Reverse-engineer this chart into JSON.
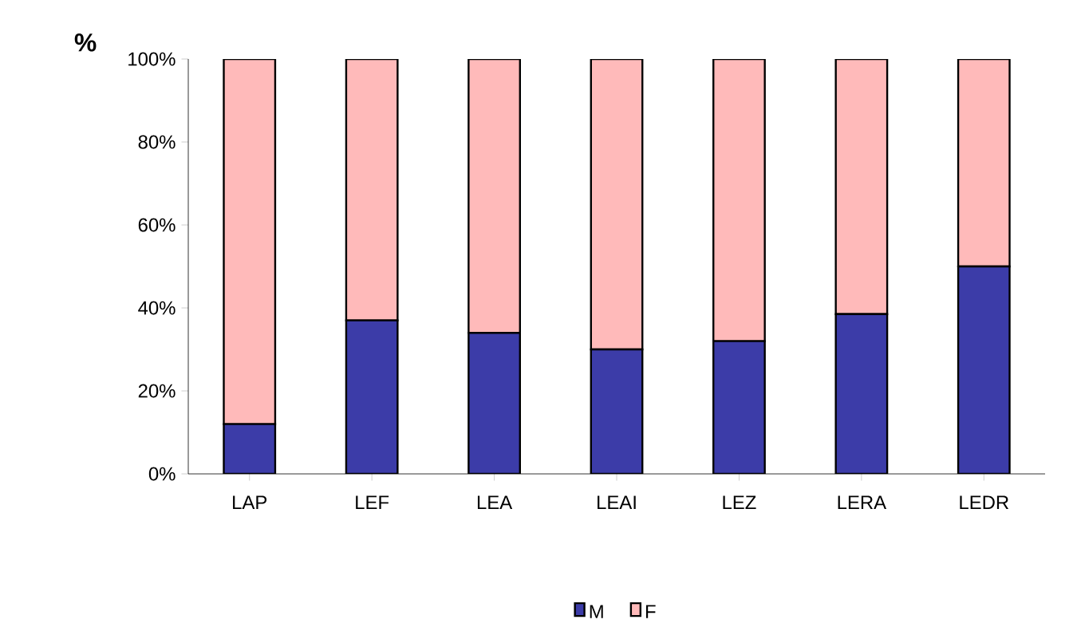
{
  "chart_data": {
    "type": "bar",
    "stacked": true,
    "ylabel": "%",
    "categories": [
      "LAP",
      "LEF",
      "LEA",
      "LEAI",
      "LEZ",
      "LERA",
      "LEDR"
    ],
    "series": [
      {
        "name": "M",
        "color": "#3c3ca8",
        "values": [
          12,
          37,
          34,
          30,
          32,
          38.5,
          50
        ]
      },
      {
        "name": "F",
        "color": "#ffbaba",
        "values": [
          88,
          63,
          66,
          70,
          68,
          61.5,
          50
        ]
      }
    ],
    "ylim": [
      0,
      100
    ],
    "yticks": [
      {
        "value": 0,
        "label": "0%"
      },
      {
        "value": 20,
        "label": "20%"
      },
      {
        "value": 40,
        "label": "40%"
      },
      {
        "value": 60,
        "label": "60%"
      },
      {
        "value": 80,
        "label": "80%"
      },
      {
        "value": 100,
        "label": "100%"
      }
    ],
    "grid": false,
    "legend": "bottom"
  }
}
